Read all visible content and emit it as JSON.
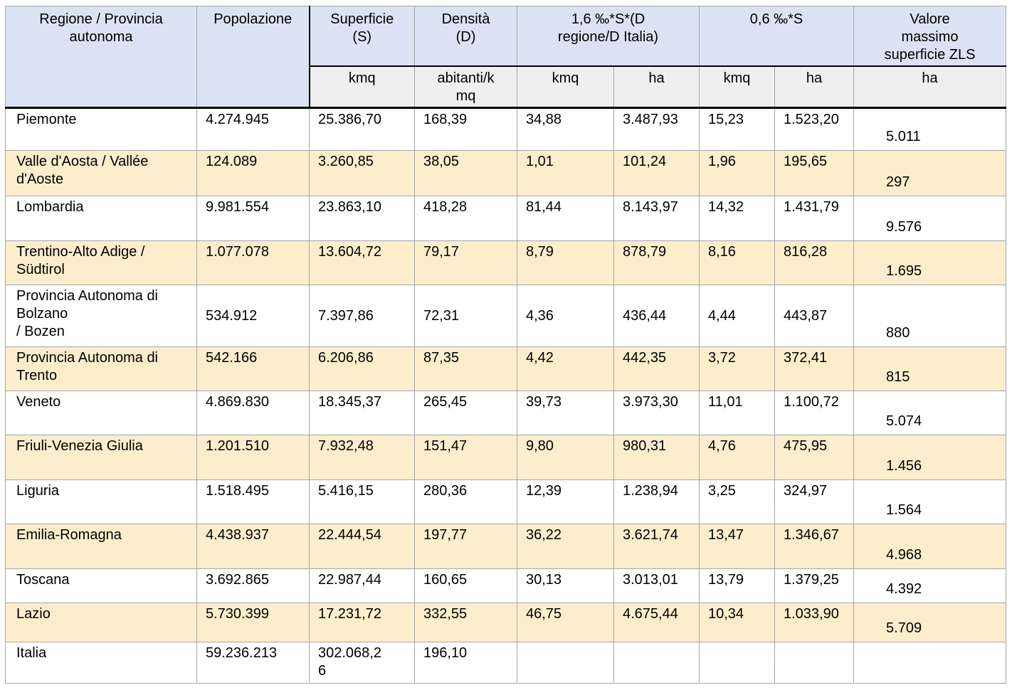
{
  "document": {
    "colors": {
      "header_blue": "#dbe2f3",
      "units_gray": "#efefef",
      "row_shaded": "#fceecd",
      "row_plain": "#ffffff",
      "border_gray": "#a6a6a6",
      "border_black": "#000000"
    },
    "table": {
      "headers": {
        "region": "Regione / Provincia autonoma",
        "population": "Popolazione",
        "surface": "Superficie (S)",
        "density": "Densità (D)",
        "formula_16": "1,6 ‰*S*(D regione/D Italia)",
        "formula_06": "0,6 ‰*S",
        "max_zls": "Valore massimo superficie ZLS",
        "units": {
          "surface": "kmq",
          "density": "abitanti/kmq",
          "f16_kmq": "kmq",
          "f16_ha": "ha",
          "f06_kmq": "kmq",
          "f06_ha": "ha",
          "max_ha": "ha"
        }
      },
      "rows": [
        {
          "region": "Piemonte",
          "values": [
            "4.274.945",
            "25.386,70",
            "168,39",
            "34,88",
            "3.487,93",
            "15,23",
            "1.523,20",
            "5.011"
          ]
        },
        {
          "region": "Valle d'Aosta / Vallée d'Aoste",
          "values": [
            "124.089",
            "3.260,85",
            "38,05",
            "1,01",
            "101,24",
            "1,96",
            "195,65",
            "297"
          ]
        },
        {
          "region": "Lombardia",
          "values": [
            "9.981.554",
            "23.863,10",
            "418,28",
            "81,44",
            "8.143,97",
            "14,32",
            "1.431,79",
            "9.576"
          ]
        },
        {
          "region": "Trentino-Alto Adige / Südtirol",
          "values": [
            "1.077.078",
            "13.604,72",
            "79,17",
            "8,79",
            "878,79",
            "8,16",
            "816,28",
            "1.695"
          ]
        },
        {
          "region": "Provincia Autonoma di Bolzano\n/ Bozen",
          "align": "middle",
          "values": [
            "534.912",
            "7.397,86",
            "72,31",
            "4,36",
            "436,44",
            "4,44",
            "443,87",
            "880"
          ]
        },
        {
          "region": "Provincia Autonoma di Trento",
          "values": [
            "542.166",
            "6.206,86",
            "87,35",
            "4,42",
            "442,35",
            "3,72",
            "372,41",
            "815"
          ]
        },
        {
          "region": "Veneto",
          "values": [
            "4.869.830",
            "18.345,37",
            "265,45",
            "39,73",
            "3.973,30",
            "11,01",
            "1.100,72",
            "5.074"
          ]
        },
        {
          "region": "Friuli-Venezia Giulia",
          "values": [
            "1.201.510",
            "7.932,48",
            "151,47",
            "9,80",
            "980,31",
            "4,76",
            "475,95",
            "1.456"
          ]
        },
        {
          "region": "Liguria",
          "values": [
            "1.518.495",
            "5.416,15",
            "280,36",
            "12,39",
            "1.238,94",
            "3,25",
            "324,97",
            "1.564"
          ]
        },
        {
          "region": "Emilia-Romagna",
          "values": [
            "4.438.937",
            "22.444,54",
            "197,77",
            "36,22",
            "3.621,74",
            "13,47",
            "1.346,67",
            "4.968"
          ]
        },
        {
          "region": "Toscana",
          "values": [
            "3.692.865",
            "22.987,44",
            "160,65",
            "30,13",
            "3.013,01",
            "13,79",
            "1.379,25",
            "4.392"
          ]
        },
        {
          "region": "Lazio",
          "values": [
            "5.730.399",
            "17.231,72",
            "332,55",
            "46,75",
            "4.675,44",
            "10,34",
            "1.033,90",
            "5.709"
          ]
        },
        {
          "region": "Italia",
          "values": [
            "59.236.213",
            "302.068,26",
            "196,10",
            "",
            "",
            "",
            "",
            ""
          ]
        }
      ]
    }
  }
}
